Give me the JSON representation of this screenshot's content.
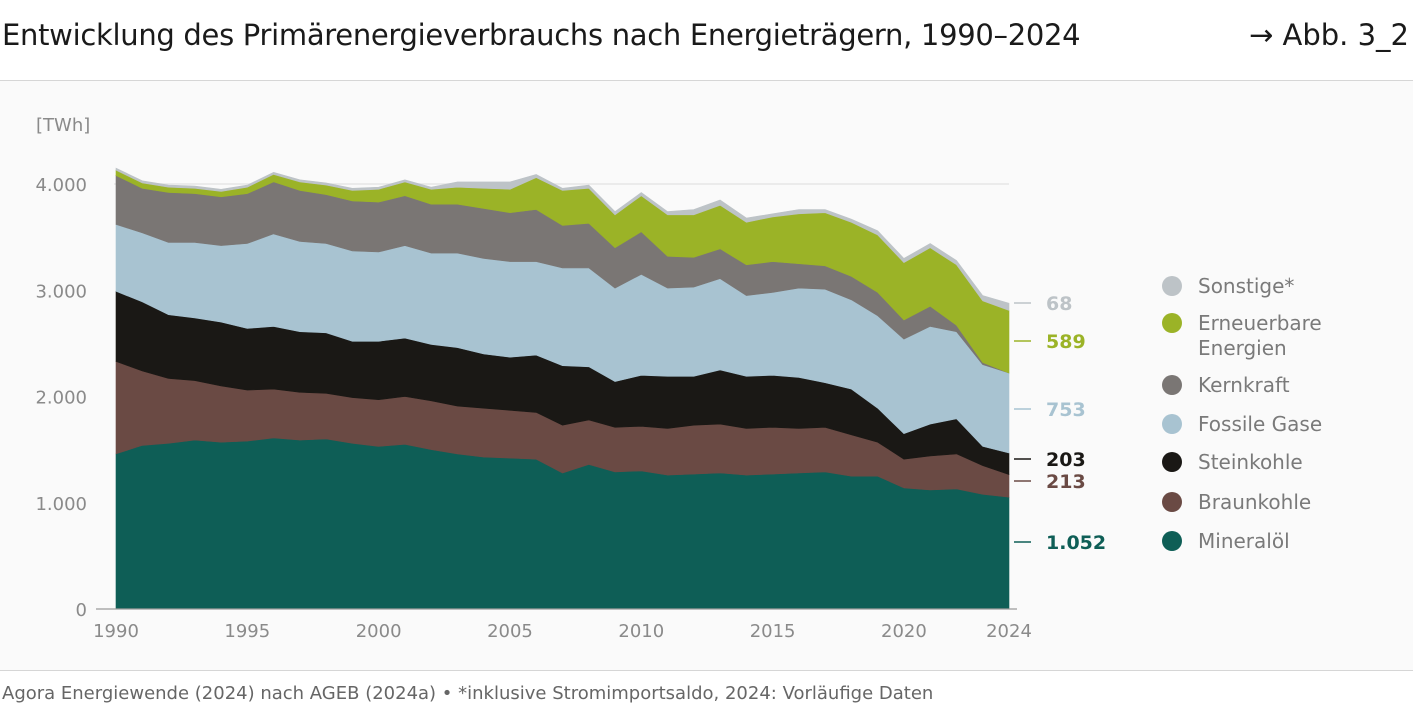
{
  "header": {
    "title": "Entwicklung des Primärenergieverbrauchs nach Energieträgern, 1990–2024",
    "figure_ref": "→ Abb. 3_2"
  },
  "footer": {
    "source": "Agora Energiewende (2024) nach AGEB (2024a) • *inklusive Stromimportsaldo, 2024: Vorläufige Daten"
  },
  "chart_data": {
    "type": "area",
    "stacked": true,
    "ylabel": "[TWh]",
    "ylim": [
      0,
      4000
    ],
    "yticks": [
      0,
      1000,
      2000,
      3000,
      4000
    ],
    "ytick_labels": [
      "0",
      "1.000",
      "2.000",
      "3.000",
      "4.000"
    ],
    "xticks": [
      1990,
      1995,
      2000,
      2005,
      2010,
      2015,
      2020,
      2024
    ],
    "grid": false,
    "legend_position": "right",
    "x": [
      1990,
      1991,
      1992,
      1993,
      1994,
      1995,
      1996,
      1997,
      1998,
      1999,
      2000,
      2001,
      2002,
      2003,
      2004,
      2005,
      2006,
      2007,
      2008,
      2009,
      2010,
      2011,
      2012,
      2013,
      2014,
      2015,
      2016,
      2017,
      2018,
      2019,
      2020,
      2021,
      2022,
      2023,
      2024
    ],
    "series": [
      {
        "name": "Mineralöl",
        "color": "#0e5e56",
        "end_label": "1.052",
        "values": [
          1460,
          1540,
          1560,
          1590,
          1570,
          1580,
          1610,
          1590,
          1600,
          1560,
          1530,
          1550,
          1500,
          1460,
          1430,
          1420,
          1410,
          1280,
          1360,
          1290,
          1300,
          1260,
          1270,
          1280,
          1260,
          1270,
          1280,
          1290,
          1250,
          1250,
          1140,
          1120,
          1130,
          1080,
          1052
        ]
      },
      {
        "name": "Braunkohle",
        "color": "#6a4a44",
        "end_label": "213",
        "values": [
          870,
          700,
          610,
          560,
          530,
          480,
          460,
          450,
          430,
          430,
          440,
          450,
          460,
          450,
          460,
          450,
          440,
          450,
          420,
          420,
          420,
          440,
          460,
          460,
          440,
          440,
          420,
          420,
          390,
          320,
          270,
          320,
          330,
          270,
          213
        ]
      },
      {
        "name": "Steinkohle",
        "color": "#1a1815",
        "end_label": "203",
        "values": [
          660,
          650,
          600,
          590,
          600,
          580,
          590,
          570,
          570,
          530,
          550,
          550,
          530,
          550,
          510,
          500,
          540,
          560,
          500,
          430,
          480,
          490,
          460,
          510,
          490,
          490,
          480,
          420,
          430,
          320,
          240,
          300,
          330,
          180,
          203
        ]
      },
      {
        "name": "Fossile Gase",
        "color": "#a8c3d1",
        "end_label": "753",
        "values": [
          630,
          650,
          680,
          710,
          720,
          800,
          870,
          850,
          840,
          850,
          840,
          870,
          860,
          890,
          900,
          900,
          880,
          920,
          930,
          880,
          950,
          830,
          840,
          860,
          760,
          780,
          840,
          880,
          840,
          870,
          890,
          920,
          820,
          770,
          753
        ]
      },
      {
        "name": "Kernkraft",
        "color": "#7a7674",
        "end_label": "",
        "values": [
          460,
          420,
          470,
          460,
          460,
          470,
          490,
          480,
          460,
          470,
          470,
          470,
          460,
          460,
          470,
          460,
          490,
          400,
          420,
          380,
          400,
          300,
          280,
          280,
          290,
          290,
          230,
          220,
          220,
          220,
          180,
          190,
          60,
          20,
          0
        ]
      },
      {
        "name": "Erneuerbare Energien",
        "color": "#9bb327",
        "end_label": "589",
        "values": [
          50,
          50,
          50,
          50,
          50,
          60,
          70,
          80,
          90,
          100,
          120,
          130,
          140,
          160,
          190,
          220,
          300,
          330,
          330,
          310,
          340,
          390,
          400,
          410,
          400,
          420,
          470,
          500,
          510,
          540,
          540,
          550,
          570,
          580,
          589
        ]
      },
      {
        "name": "Sonstige*",
        "color": "#bdc3c7",
        "end_label": "68",
        "values": [
          20,
          20,
          20,
          20,
          20,
          20,
          20,
          20,
          20,
          20,
          20,
          20,
          20,
          50,
          60,
          70,
          30,
          20,
          30,
          30,
          30,
          30,
          50,
          50,
          40,
          30,
          40,
          30,
          30,
          40,
          40,
          40,
          40,
          50,
          68
        ]
      }
    ],
    "legend_order": [
      "Sonstige*",
      "Erneuerbare Energien",
      "Kernkraft",
      "Fossile Gase",
      "Steinkohle",
      "Braunkohle",
      "Mineralöl"
    ]
  }
}
